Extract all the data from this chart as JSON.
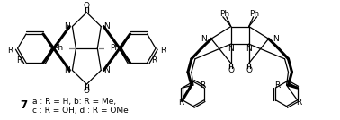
{
  "figure_width": 3.78,
  "figure_height": 1.34,
  "dpi": 100,
  "background_color": "#ffffff",
  "label_7": "7",
  "label_text_line1": "a : R = H, b: R = Me,",
  "label_text_line2": "c : R = OH, d : R = OMe",
  "label_fontsize": 6.5,
  "number_fontsize": 8.5
}
